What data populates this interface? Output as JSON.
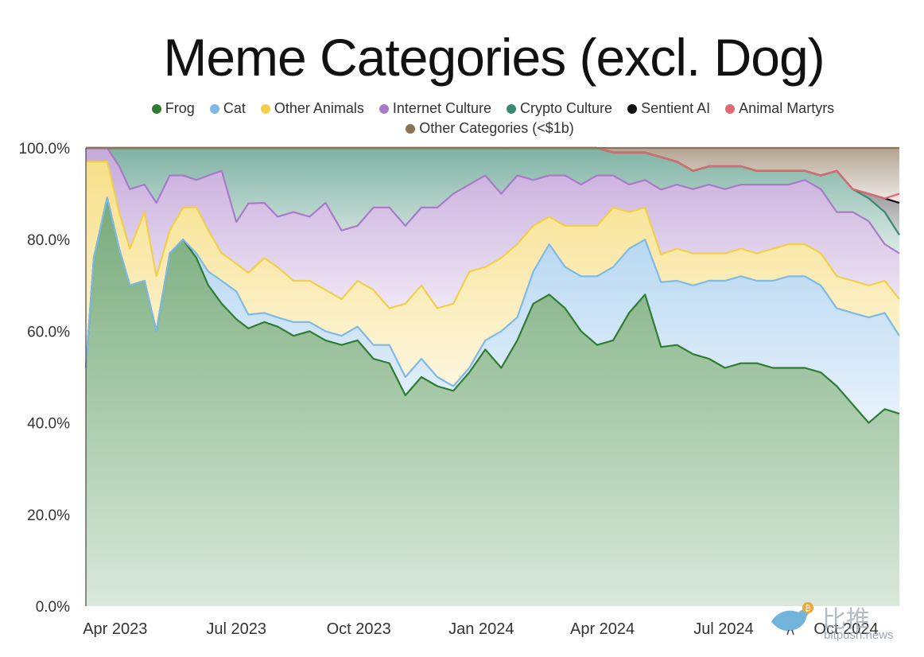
{
  "chart_data": {
    "type": "area",
    "stacked": true,
    "normalized": true,
    "title": "Meme Categories (excl. Dog)",
    "xlabel": "",
    "ylabel": "",
    "ylim": [
      0,
      100
    ],
    "y_ticks": [
      "0.0%",
      "20.0%",
      "40.0%",
      "60.0%",
      "80.0%",
      "100.0%"
    ],
    "x_ticks": [
      "Apr 2023",
      "Jul 2023",
      "Oct 2023",
      "Jan 2024",
      "Apr 2024",
      "Jul 2024",
      "Oct 2024"
    ],
    "x_tick_dates": [
      "2023-04-01",
      "2023-07-01",
      "2023-10-01",
      "2024-01-01",
      "2024-04-01",
      "2024-07-01",
      "2024-10-01"
    ],
    "x_range": [
      "2023-03-10",
      "2024-11-10"
    ],
    "grid": false,
    "legend_position": "top",
    "x": [
      "2023-03-10",
      "2023-03-16",
      "2023-03-26",
      "2023-04-04",
      "2023-04-12",
      "2023-04-23",
      "2023-05-02",
      "2023-05-12",
      "2023-05-22",
      "2023-06-01",
      "2023-06-10",
      "2023-06-20",
      "2023-07-01",
      "2023-07-10",
      "2023-07-22",
      "2023-08-01",
      "2023-08-13",
      "2023-08-25",
      "2023-09-06",
      "2023-09-18",
      "2023-09-30",
      "2023-10-12",
      "2023-10-24",
      "2023-11-05",
      "2023-11-17",
      "2023-11-29",
      "2023-12-11",
      "2023-12-23",
      "2024-01-04",
      "2024-01-16",
      "2024-01-28",
      "2024-02-09",
      "2024-02-21",
      "2024-03-04",
      "2024-03-16",
      "2024-03-28",
      "2024-04-09",
      "2024-04-21",
      "2024-05-03",
      "2024-05-15",
      "2024-05-27",
      "2024-06-08",
      "2024-06-20",
      "2024-07-02",
      "2024-07-14",
      "2024-07-26",
      "2024-08-07",
      "2024-08-19",
      "2024-08-31",
      "2024-09-12",
      "2024-09-24",
      "2024-10-06",
      "2024-10-18",
      "2024-10-30",
      "2024-11-10"
    ],
    "series": [
      {
        "name": "Frog",
        "color": "#2e7d32",
        "values": [
          52,
          76,
          90,
          78,
          70,
          71,
          60,
          77,
          80,
          76,
          70,
          66,
          62,
          60,
          62,
          61,
          59,
          60,
          58,
          57,
          58,
          54,
          53,
          46,
          50,
          48,
          47,
          51,
          56,
          52,
          58,
          66,
          68,
          65,
          60,
          57,
          58,
          64,
          68,
          56,
          57,
          55,
          54,
          52,
          53,
          53,
          52,
          52,
          52,
          51,
          48,
          44,
          40,
          43,
          42
        ]
      },
      {
        "name": "Cat",
        "color": "#7fb9e6",
        "values": [
          0,
          0,
          0,
          0,
          0,
          0,
          0,
          0,
          0,
          1,
          3,
          5,
          6,
          3,
          2,
          2,
          3,
          2,
          2,
          2,
          3,
          3,
          4,
          4,
          4,
          2,
          1,
          1,
          2,
          8,
          5,
          7,
          11,
          9,
          12,
          15,
          16,
          14,
          12,
          14,
          14,
          15,
          17,
          19,
          19,
          18,
          19,
          20,
          20,
          19,
          17,
          20,
          23,
          21,
          17
        ]
      },
      {
        "name": "Other Animals",
        "color": "#f2cf4a",
        "values": [
          45,
          21,
          8,
          8,
          8,
          15,
          12,
          5,
          7,
          10,
          9,
          6,
          6,
          9,
          12,
          11,
          9,
          9,
          9,
          8,
          10,
          12,
          8,
          16,
          16,
          15,
          18,
          21,
          16,
          16,
          16,
          10,
          6,
          9,
          11,
          11,
          13,
          8,
          7,
          6,
          7,
          7,
          6,
          6,
          6,
          6,
          7,
          7,
          7,
          7,
          7,
          7,
          7,
          7,
          8
        ]
      },
      {
        "name": "Internet Culture",
        "color": "#a77bc8",
        "values": [
          3,
          3,
          3,
          10,
          13,
          6,
          16,
          12,
          7,
          6,
          12,
          18,
          9,
          15,
          12,
          11,
          15,
          14,
          19,
          15,
          12,
          18,
          22,
          17,
          17,
          22,
          24,
          19,
          20,
          14,
          15,
          10,
          9,
          11,
          9,
          11,
          7,
          6,
          6,
          14,
          14,
          14,
          15,
          14,
          14,
          15,
          14,
          13,
          14,
          14,
          14,
          15,
          14,
          8,
          10
        ]
      },
      {
        "name": "Crypto Culture",
        "color": "#3a8a73",
        "values": [
          0,
          0,
          0,
          4,
          9,
          8,
          12,
          6,
          6,
          7,
          6,
          5,
          16,
          12,
          12,
          15,
          14,
          15,
          12,
          18,
          17,
          13,
          13,
          17,
          13,
          13,
          10,
          8,
          6,
          10,
          6,
          7,
          6,
          6,
          8,
          6,
          5,
          7,
          6,
          7,
          5,
          4,
          4,
          5,
          4,
          3,
          3,
          3,
          2,
          3,
          9,
          5,
          5,
          7,
          4
        ]
      },
      {
        "name": "Sentient AI",
        "color": "#111111",
        "values": [
          0,
          0,
          0,
          0,
          0,
          0,
          0,
          0,
          0,
          0,
          0,
          0,
          0,
          0,
          0,
          0,
          0,
          0,
          0,
          0,
          0,
          0,
          0,
          0,
          0,
          0,
          0,
          0,
          0,
          0,
          0,
          0,
          0,
          0,
          0,
          0,
          0,
          0,
          0,
          0,
          0,
          0,
          0,
          0,
          0,
          0,
          0,
          0,
          0,
          0,
          0,
          0,
          1,
          3,
          7
        ]
      },
      {
        "name": "Animal Martyrs",
        "color": "#e06a72",
        "values": [
          0,
          0,
          0,
          0,
          0,
          0,
          0,
          0,
          0,
          0,
          0,
          0,
          0,
          0,
          0,
          0,
          0,
          0,
          0,
          0,
          0,
          0,
          0,
          0,
          0,
          0,
          0,
          0,
          0,
          0,
          0,
          0,
          0,
          0,
          0,
          0,
          0,
          0,
          0,
          0,
          0,
          0,
          0,
          0,
          0,
          0,
          0,
          0,
          0,
          0,
          0,
          0,
          0,
          0,
          2
        ]
      },
      {
        "name": "Other Categories (<$1b)",
        "color": "#8c7356",
        "values": [
          0,
          0,
          0,
          0,
          0,
          0,
          0,
          0,
          0,
          0,
          0,
          0,
          0,
          0,
          0,
          0,
          0,
          0,
          0,
          0,
          0,
          0,
          0,
          0,
          0,
          0,
          0,
          0,
          0,
          0,
          0,
          0,
          0,
          0,
          0,
          0,
          1,
          1,
          1,
          2,
          3,
          5,
          4,
          4,
          4,
          5,
          5,
          5,
          5,
          6,
          5,
          9,
          10,
          11,
          10
        ]
      }
    ]
  },
  "watermark": {
    "chinese_text": "比推",
    "url_text": "bitpush.news",
    "coin_symbol": "₿"
  }
}
